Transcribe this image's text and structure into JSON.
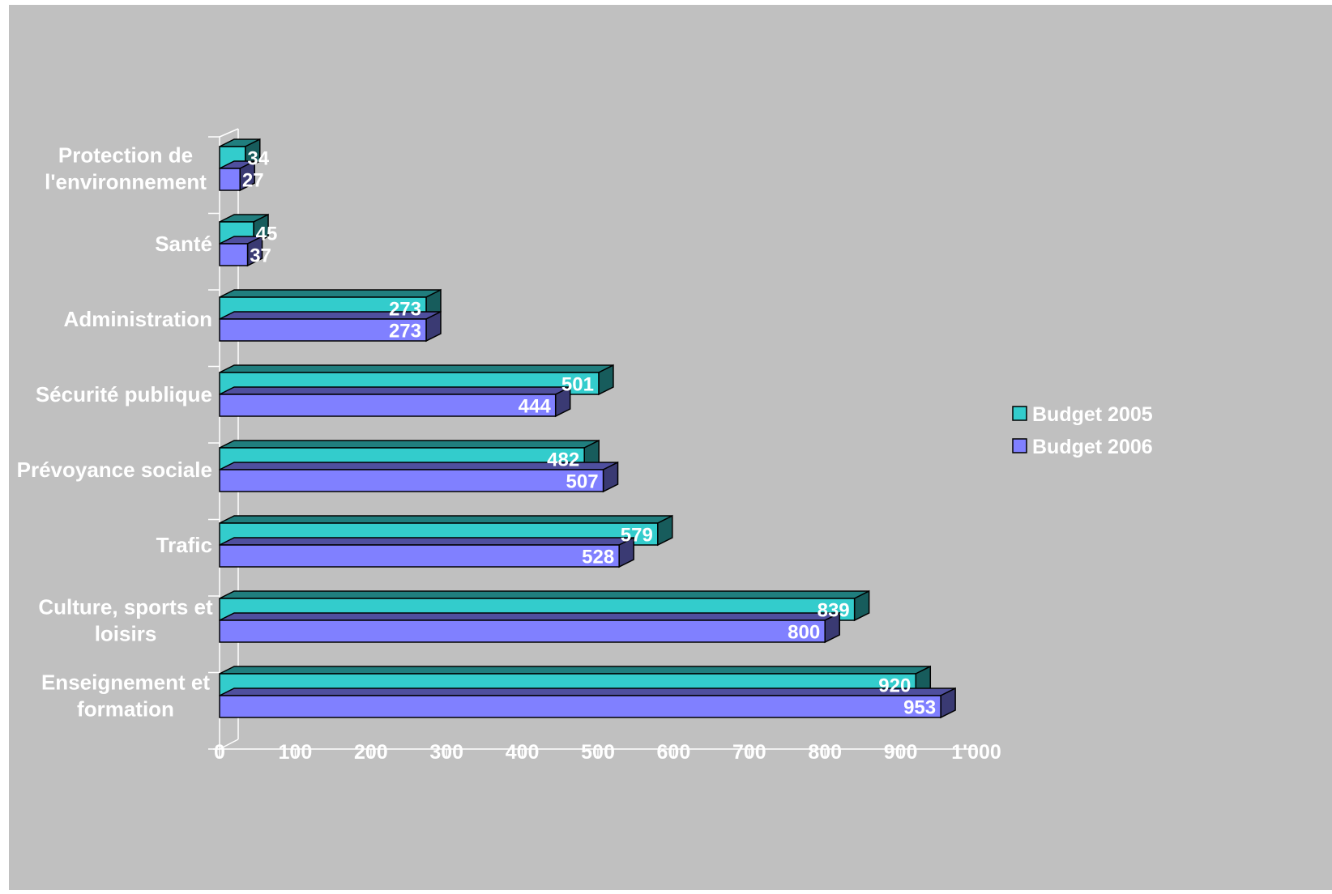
{
  "chart_data": {
    "type": "bar",
    "orientation": "horizontal",
    "style": "3d",
    "categories": [
      [
        "Protection de",
        "l'environnement"
      ],
      [
        "Santé"
      ],
      [
        "Administration"
      ],
      [
        "Sécurité publique"
      ],
      [
        "Prévoyance sociale"
      ],
      [
        "Trafic"
      ],
      [
        "Culture, sports et",
        "loisirs"
      ],
      [
        "Enseignement et",
        "formation"
      ]
    ],
    "series": [
      {
        "name": "Budget 2005",
        "color": "#33cccc",
        "values": [
          34,
          45,
          273,
          501,
          482,
          579,
          839,
          920
        ],
        "labels": [
          "34",
          "45",
          "273",
          "501",
          "482",
          "579",
          "839",
          "920"
        ]
      },
      {
        "name": "Budget 2006",
        "color": "#8080ff",
        "values": [
          27,
          37,
          273,
          444,
          507,
          528,
          800,
          953
        ],
        "labels": [
          "27",
          "37",
          "273",
          "444",
          "507",
          "528",
          "800",
          "953"
        ]
      }
    ],
    "xlim": [
      0,
      1000
    ],
    "xticks": [
      0,
      100,
      200,
      300,
      400,
      500,
      600,
      700,
      800,
      900,
      1000
    ],
    "xtick_labels": [
      "0",
      "100",
      "200",
      "300",
      "400",
      "500",
      "600",
      "700",
      "800",
      "900",
      "1'000"
    ],
    "legend_position": "right",
    "grid": false,
    "background": "#c0c0c0"
  }
}
